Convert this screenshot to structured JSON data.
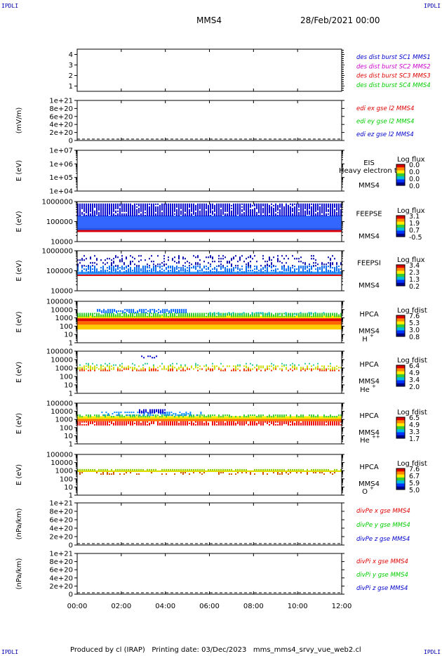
{
  "header": {
    "corner_tl": "IPDLI",
    "corner_tr": "IPDLI",
    "corner_bl": "IPDLI",
    "corner_br": "IPDLI",
    "spacecraft": "MMS4",
    "date": "28/Feb/2021 00:00"
  },
  "footer": {
    "produced": "Produced by cl (IRAP)",
    "printing": "Printing date: 03/Dec/2023",
    "file": "mms_mms4_srvy_vue_web2.cl"
  },
  "time_axis": {
    "ticks": [
      "00:00",
      "02:00",
      "04:00",
      "06:00",
      "08:00",
      "10:00",
      "12:00"
    ],
    "range_hours": [
      0,
      12
    ]
  },
  "colors": {
    "blue": "#0000cc",
    "magenta": "#cc00cc",
    "red": "#dd0000",
    "green": "#00cc00"
  },
  "chart_data": [
    {
      "type": "line",
      "id": "burst",
      "yticks": [
        "4",
        "3",
        "2",
        "1"
      ],
      "ylim": [
        0.5,
        4.5
      ],
      "legend": [
        {
          "label": "des dist burst SC1 MMS1",
          "color": "#0000cc"
        },
        {
          "label": "des dist burst SC2 MMS2",
          "color": "#cc00cc"
        },
        {
          "label": "des dist burst SC3 MMS3",
          "color": "#dd0000"
        },
        {
          "label": "des dist burst SC4 MMS4",
          "color": "#00cc00"
        }
      ]
    },
    {
      "type": "line",
      "id": "edi",
      "ylabel": "(mV/m)",
      "yticks": [
        "1e+21",
        "8e+20",
        "6e+20",
        "4e+20",
        "2e+20",
        "0"
      ],
      "ylim": [
        0,
        1e+21
      ],
      "legend": [
        {
          "label": "edi ex gse l2 MMS4",
          "color": "#dd0000"
        },
        {
          "label": "edi ey gse l2 MMS4",
          "color": "#00cc00"
        },
        {
          "label": "edi ez gse l2 MMS4",
          "color": "#0000cc"
        }
      ]
    },
    {
      "type": "heatmap",
      "id": "eis",
      "ylabel": "E (eV)",
      "yticks": [
        "1e+07",
        "1e+06",
        "1e+05",
        "1e+04"
      ],
      "ylim": [
        10000,
        10000000
      ],
      "instrument": "EIS",
      "overlay": "Heavy electron to",
      "sc": "MMS4",
      "colorbar_title": "Log flux",
      "colorbar_ticks": [
        "0.0",
        "0.0",
        "0.0",
        "0.0"
      ],
      "bands": []
    },
    {
      "type": "heatmap",
      "id": "feepse",
      "ylabel": "E (eV)",
      "yticks": [
        "1000000",
        "100000",
        "10000"
      ],
      "ylim": [
        10000,
        1000000
      ],
      "instrument": "FEEPSE",
      "sc": "MMS4",
      "colorbar_title": "Log flux",
      "colorbar_ticks": [
        "3.1",
        "1.9",
        "0.7",
        "-0.5"
      ],
      "bands": [
        {
          "t0": 0,
          "t1": 12,
          "e0": 30000,
          "e1": 38000,
          "color": "#dd0000",
          "density": 1
        },
        {
          "t0": 0,
          "t1": 12,
          "e0": 38000,
          "e1": 50000,
          "color": "#2255ee",
          "density": 1
        },
        {
          "t0": 0,
          "t1": 12,
          "e0": 50000,
          "e1": 200000,
          "color": "#3366ff",
          "density": 0.95
        },
        {
          "t0": 0,
          "t1": 12,
          "e0": 200000,
          "e1": 800000,
          "color": "#0000cc",
          "density": 0.9
        }
      ]
    },
    {
      "type": "heatmap",
      "id": "feepsi",
      "ylabel": "E (eV)",
      "yticks": [
        "1000000",
        "100000",
        "10000"
      ],
      "ylim": [
        10000,
        1000000
      ],
      "instrument": "FEEPSI",
      "sc": "MMS4",
      "colorbar_title": "Log flux",
      "colorbar_ticks": [
        "3.4",
        "2.3",
        "1.3",
        "0.2"
      ],
      "bands": [
        {
          "t0": 0,
          "t1": 12,
          "e0": 55000,
          "e1": 65000,
          "color": "#dd0000",
          "density": 1
        },
        {
          "t0": 0,
          "t1": 12,
          "e0": 65000,
          "e1": 90000,
          "color": "#3399ff",
          "density": 1
        },
        {
          "t0": 0,
          "t1": 12,
          "e0": 90000,
          "e1": 180000,
          "color": "#0066ee",
          "density": 0.6
        },
        {
          "t0": 0,
          "t1": 12,
          "e0": 180000,
          "e1": 600000,
          "color": "#0000aa",
          "density": 0.25
        }
      ]
    },
    {
      "type": "heatmap",
      "id": "hpca-h",
      "ylabel": "E (eV)",
      "yticks": [
        "100000",
        "10000",
        "1000",
        "100",
        "10",
        "1"
      ],
      "ylim": [
        1,
        100000
      ],
      "instrument": "HPCA",
      "sc": "MMS4",
      "species": "H",
      "species_sup": "+",
      "colorbar_title": "Log fdist",
      "colorbar_ticks": [
        "7.6",
        "5.3",
        "3.0",
        "0.8"
      ],
      "bands": [
        {
          "t0": 0,
          "t1": 12,
          "e0": 40,
          "e1": 150,
          "color": "#ffcc00",
          "density": 0.95
        },
        {
          "t0": 0,
          "t1": 12,
          "e0": 150,
          "e1": 400,
          "color": "#ff6600",
          "density": 1
        },
        {
          "t0": 0,
          "t1": 12,
          "e0": 400,
          "e1": 900,
          "color": "#dd0000",
          "density": 1
        },
        {
          "t0": 0,
          "t1": 12,
          "e0": 900,
          "e1": 1800,
          "color": "#ffee00",
          "density": 1
        },
        {
          "t0": 0,
          "t1": 12,
          "e0": 1800,
          "e1": 4000,
          "color": "#33cc33",
          "density": 0.9
        },
        {
          "t0": 0.8,
          "t1": 5.0,
          "e0": 4000,
          "e1": 12000,
          "color": "#0066ff",
          "density": 0.8
        },
        {
          "t0": 6.0,
          "t1": 11.5,
          "e0": 2500,
          "e1": 5000,
          "color": "#00bbbb",
          "density": 0.3
        }
      ]
    },
    {
      "type": "heatmap",
      "id": "hpca-he",
      "ylabel": "E (eV)",
      "yticks": [
        "100000",
        "10000",
        "1000",
        "100",
        "10",
        "1"
      ],
      "ylim": [
        1,
        100000
      ],
      "instrument": "HPCA",
      "sc": "MMS4",
      "species": "He",
      "species_sup": "+",
      "colorbar_title": "Log fdist",
      "colorbar_ticks": [
        "6.4",
        "4.9",
        "3.4",
        "2.0"
      ],
      "bands": [
        {
          "t0": 0,
          "t1": 12,
          "e0": 500,
          "e1": 900,
          "color": "#ee3300",
          "density": 0.5
        },
        {
          "t0": 0,
          "t1": 12,
          "e0": 900,
          "e1": 2000,
          "color": "#ccdd00",
          "density": 0.45
        },
        {
          "t0": 0,
          "t1": 12,
          "e0": 2000,
          "e1": 4000,
          "color": "#33cc99",
          "density": 0.2
        },
        {
          "t0": 2.9,
          "t1": 3.6,
          "e0": 14000,
          "e1": 30000,
          "color": "#0000cc",
          "density": 0.5
        }
      ]
    },
    {
      "type": "heatmap",
      "id": "hpca-hepp",
      "ylabel": "E (eV)",
      "yticks": [
        "100000",
        "10000",
        "1000",
        "100",
        "10",
        "1"
      ],
      "ylim": [
        1,
        100000
      ],
      "instrument": "HPCA",
      "sc": "MMS4",
      "species": "He",
      "species_sup": "++",
      "colorbar_title": "Log fdist",
      "colorbar_ticks": [
        "6.5",
        "4.9",
        "3.3",
        "1.7"
      ],
      "bands": [
        {
          "t0": 0,
          "t1": 12,
          "e0": 250,
          "e1": 600,
          "color": "#ee0000",
          "density": 0.85
        },
        {
          "t0": 0,
          "t1": 12,
          "e0": 600,
          "e1": 1200,
          "color": "#ff7700",
          "density": 1
        },
        {
          "t0": 0,
          "t1": 12,
          "e0": 1200,
          "e1": 2500,
          "color": "#eeee00",
          "density": 1
        },
        {
          "t0": 0,
          "t1": 12,
          "e0": 2500,
          "e1": 4000,
          "color": "#33cc33",
          "density": 0.6
        },
        {
          "t0": 1.0,
          "t1": 5.7,
          "e0": 4000,
          "e1": 9000,
          "color": "#0088ff",
          "density": 0.4
        },
        {
          "t0": 2.8,
          "t1": 4.0,
          "e0": 7000,
          "e1": 18000,
          "color": "#0000cc",
          "density": 0.8
        }
      ]
    },
    {
      "type": "heatmap",
      "id": "hpca-o",
      "ylabel": "E (eV)",
      "yticks": [
        "100000",
        "10000",
        "1000",
        "100",
        "10",
        "1"
      ],
      "ylim": [
        1,
        100000
      ],
      "instrument": "HPCA",
      "sc": "MMS4",
      "species": "O",
      "species_sup": "+",
      "colorbar_title": "Log fdist",
      "colorbar_ticks": [
        "7.6",
        "6.7",
        "5.9",
        "5.0"
      ],
      "bands": [
        {
          "t0": 0,
          "t1": 12,
          "e0": 700,
          "e1": 1100,
          "color": "#dddd00",
          "density": 1
        },
        {
          "t0": 0,
          "t1": 12,
          "e0": 1100,
          "e1": 1600,
          "color": "#88cc00",
          "density": 0.8
        },
        {
          "t0": 0,
          "t1": 12,
          "e0": 450,
          "e1": 700,
          "color": "#cc5500",
          "density": 0.25
        }
      ]
    },
    {
      "type": "line",
      "id": "divpe",
      "ylabel": "(nPa/km)",
      "yticks": [
        "1e+21",
        "8e+20",
        "6e+20",
        "4e+20",
        "2e+20",
        "0"
      ],
      "ylim": [
        0,
        1e+21
      ],
      "legend": [
        {
          "label": "divPe x gse MMS4",
          "color": "#dd0000"
        },
        {
          "label": "divPe y gse MMS4",
          "color": "#00cc00"
        },
        {
          "label": "divPe z gse MMS4",
          "color": "#0000cc"
        }
      ]
    },
    {
      "type": "line",
      "id": "divpi",
      "ylabel": "(nPa/km)",
      "yticks": [
        "1e+21",
        "8e+20",
        "6e+20",
        "4e+20",
        "2e+20",
        "0"
      ],
      "ylim": [
        0,
        1e+21
      ],
      "legend": [
        {
          "label": "divPi x gse MMS4",
          "color": "#dd0000"
        },
        {
          "label": "divPi y gse MMS4",
          "color": "#00cc00"
        },
        {
          "label": "divPi z gse MMS4",
          "color": "#0000cc"
        }
      ]
    }
  ]
}
